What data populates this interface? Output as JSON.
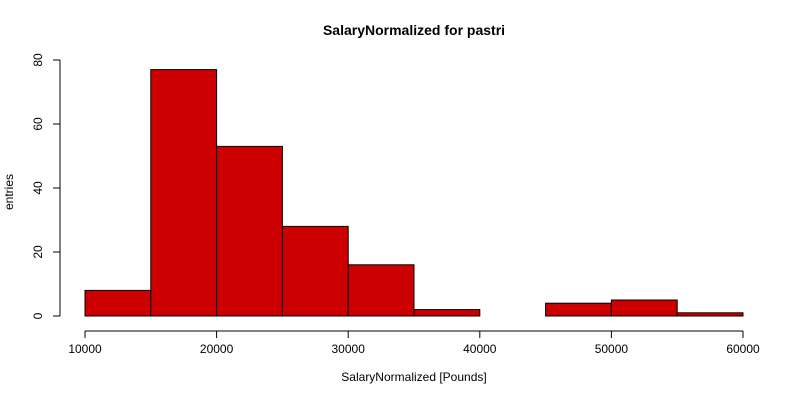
{
  "chart_data": {
    "type": "bar",
    "title": "SalaryNormalized for pastri",
    "xlabel": "SalaryNormalized [Pounds]",
    "ylabel": "entries",
    "bin_edges": [
      10000,
      15000,
      20000,
      25000,
      30000,
      35000,
      40000,
      45000,
      50000,
      55000,
      60000
    ],
    "values": [
      8,
      77,
      53,
      28,
      16,
      2,
      0,
      4,
      5,
      1
    ],
    "xlim": [
      10000,
      60000
    ],
    "ylim": [
      0,
      80
    ],
    "x_ticks": [
      10000,
      20000,
      30000,
      40000,
      50000,
      60000
    ],
    "y_ticks": [
      0,
      20,
      40,
      60,
      80
    ],
    "bar_color": "#cc0000",
    "grid": false,
    "legend": "none"
  }
}
